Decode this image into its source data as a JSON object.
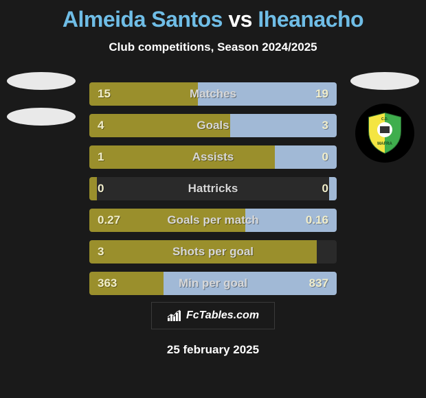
{
  "title": {
    "player1": "Almeida Santos",
    "vs": "vs",
    "player2": "Iheanacho",
    "player1_color": "#6fbde6",
    "vs_color": "#ffffff",
    "player2_color": "#6fbde6"
  },
  "subtitle": "Club competitions, Season 2024/2025",
  "footer_brand": "FcTables.com",
  "footer_date": "25 february 2025",
  "colors": {
    "background": "#1a1a1a",
    "left_bar": "#9a8f2c",
    "right_bar": "#a1b9d6",
    "track": "#2a2a2a",
    "value_text": "#f1eecb",
    "label_text": "#d7d7d7"
  },
  "club_badge": {
    "text": "C.D. MAFRA",
    "shield_left": "#f4e542",
    "shield_right": "#3fae4d",
    "shield_center": "#ffffff"
  },
  "stats": [
    {
      "label": "Matches",
      "left_val": "15",
      "right_val": "19",
      "left_pct": 44,
      "right_pct": 56
    },
    {
      "label": "Goals",
      "left_val": "4",
      "right_val": "3",
      "left_pct": 57,
      "right_pct": 43
    },
    {
      "label": "Assists",
      "left_val": "1",
      "right_val": "0",
      "left_pct": 75,
      "right_pct": 25
    },
    {
      "label": "Hattricks",
      "left_val": "0",
      "right_val": "0",
      "left_pct": 3,
      "right_pct": 3
    },
    {
      "label": "Goals per match",
      "left_val": "0.27",
      "right_val": "0.16",
      "left_pct": 63,
      "right_pct": 37
    },
    {
      "label": "Shots per goal",
      "left_val": "3",
      "right_val": "",
      "left_pct": 92,
      "right_pct": 0
    },
    {
      "label": "Min per goal",
      "left_val": "363",
      "right_val": "837",
      "left_pct": 30,
      "right_pct": 70
    }
  ]
}
